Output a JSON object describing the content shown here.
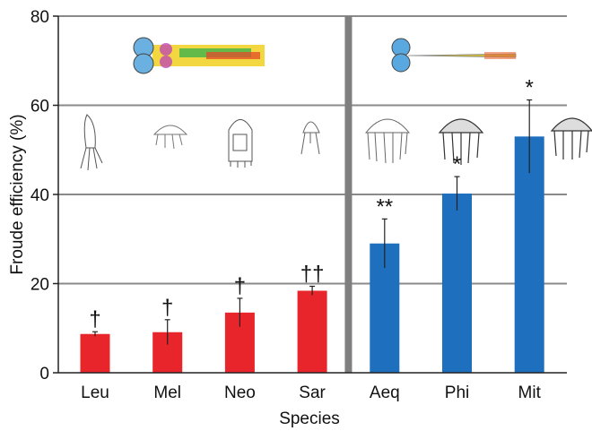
{
  "chart_data": {
    "type": "bar",
    "xlabel": "Species",
    "ylabel": "Froude efficiency (%)",
    "ylim": [
      0,
      80
    ],
    "yticks": [
      "0",
      "20",
      "40",
      "60",
      "80"
    ],
    "grid": true,
    "categories": [
      "Leu",
      "Mel",
      "Neo",
      "Sar",
      "Aeq",
      "Phi",
      "Mit"
    ],
    "values": [
      8.7,
      9.1,
      13.5,
      18.4,
      29.0,
      40.2,
      53.0
    ],
    "errors": [
      0.5,
      2.8,
      3.2,
      1.0,
      5.5,
      3.8,
      8.2
    ],
    "annotations": [
      "†",
      "†",
      "†",
      "††",
      "**",
      "*",
      "*"
    ],
    "groups": [
      {
        "categories": [
          "Leu",
          "Mel",
          "Neo",
          "Sar"
        ],
        "color": "#e8252a"
      },
      {
        "categories": [
          "Aeq",
          "Phi",
          "Mit"
        ],
        "color": "#1f6fbf"
      }
    ],
    "divider_after": "Sar"
  },
  "colors": {
    "grid": "#8a8a8a",
    "divider": "#7f7f7f",
    "axis": "#222222"
  }
}
